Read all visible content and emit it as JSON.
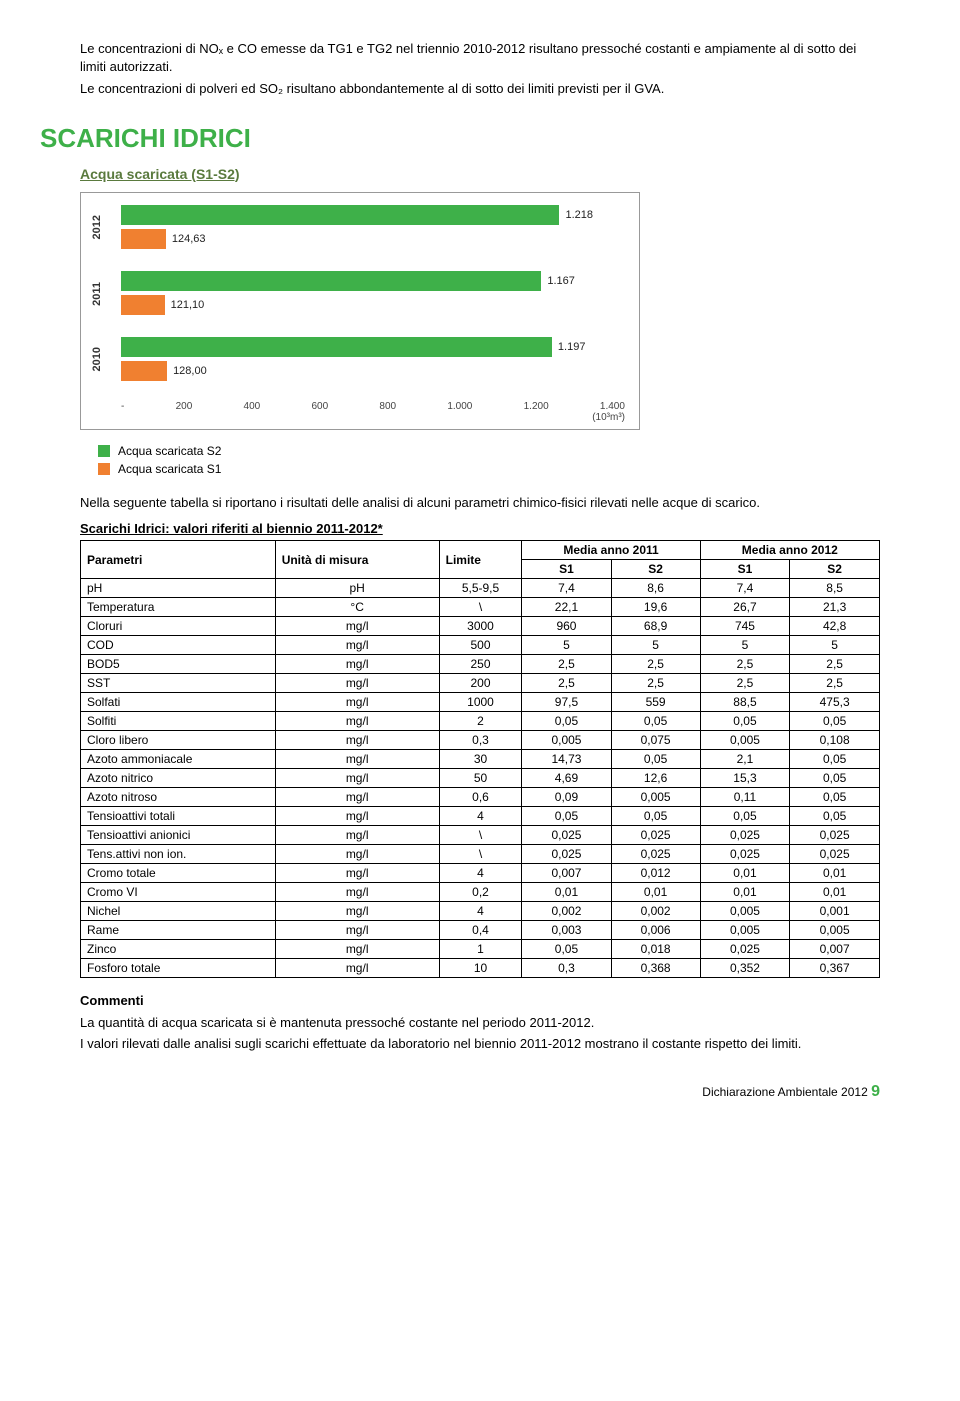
{
  "intro": {
    "p1": "Le concentrazioni di NOₓ e CO emesse da TG1 e TG2 nel triennio 2010-2012 risultano pressoché costanti e ampiamente al di sotto dei limiti autorizzati.",
    "p2": "Le concentrazioni di polveri ed SO₂ risultano abbondantemente al di sotto dei limiti previsti per il GVA."
  },
  "section_title": "SCARICHI IDRICI",
  "chart": {
    "title": "Acqua scaricata (S1-S2)",
    "type": "bar",
    "orientation": "horizontal",
    "background_color": "#ffffff",
    "border_color": "#999999",
    "x_unit": "(10³m³)",
    "x_ticks": [
      "-",
      "200",
      "400",
      "600",
      "800",
      "1.000",
      "1.200",
      "1.400"
    ],
    "xlim": [
      0,
      1400
    ],
    "bar_colors": {
      "s2": "#3eb049",
      "s1": "#f08030"
    },
    "label_fontsize": 11,
    "rows": [
      {
        "year": "2012",
        "s2": {
          "value": 1218,
          "label": "1.218",
          "width_pct": 87.0
        },
        "s1": {
          "value": 124.63,
          "label": "124,63",
          "width_pct": 8.9
        }
      },
      {
        "year": "2011",
        "s2": {
          "value": 1167,
          "label": "1.167",
          "width_pct": 83.4
        },
        "s1": {
          "value": 121.1,
          "label": "121,10",
          "width_pct": 8.65
        }
      },
      {
        "year": "2010",
        "s2": {
          "value": 1197,
          "label": "1.197",
          "width_pct": 85.5
        },
        "s1": {
          "value": 128.0,
          "label": "128,00",
          "width_pct": 9.14
        }
      }
    ],
    "legend": {
      "s2": "Acqua scaricata S2",
      "s1": "Acqua scaricata S1"
    }
  },
  "table_intro": "Nella seguente tabella si riportano i risultati delle analisi di alcuni parametri chimico-fisici rilevati nelle acque di scarico.",
  "table": {
    "caption": "Scarichi Idrici: valori riferiti al biennio 2011-2012*",
    "header": {
      "c1": "Parametri",
      "c2": "Unità di misura",
      "c3": "Limite",
      "g2011": "Media anno 2011",
      "g2012": "Media anno 2012",
      "s1": "S1",
      "s2": "S2"
    },
    "rows": [
      [
        "pH",
        "pH",
        "5,5-9,5",
        "7,4",
        "8,6",
        "7,4",
        "8,5"
      ],
      [
        "Temperatura",
        "°C",
        "\\",
        "22,1",
        "19,6",
        "26,7",
        "21,3"
      ],
      [
        "Cloruri",
        "mg/l",
        "3000",
        "960",
        "68,9",
        "745",
        "42,8"
      ],
      [
        "COD",
        "mg/l",
        "500",
        "5",
        "5",
        "5",
        "5"
      ],
      [
        "BOD5",
        "mg/l",
        "250",
        "2,5",
        "2,5",
        "2,5",
        "2,5"
      ],
      [
        "SST",
        "mg/l",
        "200",
        "2,5",
        "2,5",
        "2,5",
        "2,5"
      ],
      [
        "Solfati",
        "mg/l",
        "1000",
        "97,5",
        "559",
        "88,5",
        "475,3"
      ],
      [
        "Solfiti",
        "mg/l",
        "2",
        "0,05",
        "0,05",
        "0,05",
        "0,05"
      ],
      [
        "Cloro libero",
        "mg/l",
        "0,3",
        "0,005",
        "0,075",
        "0,005",
        "0,108"
      ],
      [
        "Azoto ammoniacale",
        "mg/l",
        "30",
        "14,73",
        "0,05",
        "2,1",
        "0,05"
      ],
      [
        "Azoto nitrico",
        "mg/l",
        "50",
        "4,69",
        "12,6",
        "15,3",
        "0,05"
      ],
      [
        "Azoto nitroso",
        "mg/l",
        "0,6",
        "0,09",
        "0,005",
        "0,11",
        "0,05"
      ],
      [
        "Tensioattivi totali",
        "mg/l",
        "4",
        "0,05",
        "0,05",
        "0,05",
        "0,05"
      ],
      [
        "Tensioattivi anionici",
        "mg/l",
        "\\",
        "0,025",
        "0,025",
        "0,025",
        "0,025"
      ],
      [
        "Tens.attivi non ion.",
        "mg/l",
        "\\",
        "0,025",
        "0,025",
        "0,025",
        "0,025"
      ],
      [
        "Cromo totale",
        "mg/l",
        "4",
        "0,007",
        "0,012",
        "0,01",
        "0,01"
      ],
      [
        "Cromo VI",
        "mg/l",
        "0,2",
        "0,01",
        "0,01",
        "0,01",
        "0,01"
      ],
      [
        "Nichel",
        "mg/l",
        "4",
        "0,002",
        "0,002",
        "0,005",
        "0,001"
      ],
      [
        "Rame",
        "mg/l",
        "0,4",
        "0,003",
        "0,006",
        "0,005",
        "0,005"
      ],
      [
        "Zinco",
        "mg/l",
        "1",
        "0,05",
        "0,018",
        "0,025",
        "0,007"
      ],
      [
        "Fosforo totale",
        "mg/l",
        "10",
        "0,3",
        "0,368",
        "0,352",
        "0,367"
      ]
    ]
  },
  "comments": {
    "title": "Commenti",
    "p1": "La quantità di acqua scaricata si è mantenuta pressoché costante nel periodo 2011-2012.",
    "p2": "I valori rilevati dalle analisi sugli scarichi effettuate da laboratorio nel biennio 2011-2012 mostrano il costante rispetto dei limiti."
  },
  "footer": {
    "text": "Dichiarazione Ambientale 2012",
    "page": "9"
  }
}
